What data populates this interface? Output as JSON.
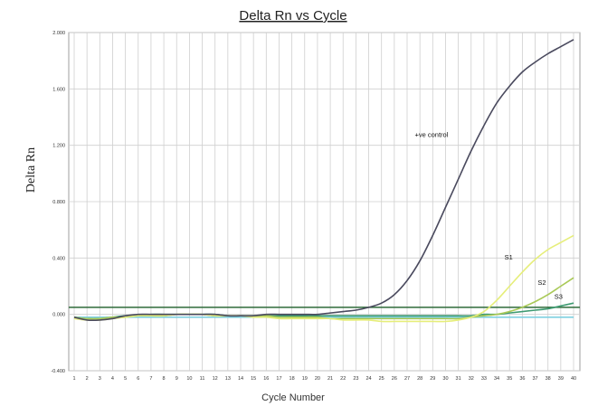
{
  "chart_data": {
    "type": "line",
    "title": "Delta Rn vs Cycle",
    "xlabel": "Cycle Number",
    "ylabel": "Delta Rn",
    "xlim": [
      1,
      40
    ],
    "ylim": [
      -0.4,
      2.0
    ],
    "ytick_labels": [
      "2.000",
      "1.600",
      "1.200",
      "0.800",
      "0.400",
      "0.000",
      "-0.400"
    ],
    "ytick_values": [
      2.0,
      1.6,
      1.2,
      0.8,
      0.4,
      0.0,
      -0.4
    ],
    "xtick_labels": [
      "1",
      "2",
      "3",
      "4",
      "5",
      "6",
      "7",
      "8",
      "9",
      "10",
      "11",
      "12",
      "13",
      "14",
      "15",
      "16",
      "17",
      "18",
      "19",
      "20",
      "21",
      "22",
      "23",
      "24",
      "25",
      "26",
      "27",
      "28",
      "29",
      "30",
      "31",
      "32",
      "33",
      "34",
      "35",
      "36",
      "37",
      "38",
      "39",
      "40"
    ],
    "grid": "vertical",
    "threshold": 0.05,
    "x": [
      1,
      2,
      3,
      4,
      5,
      6,
      7,
      8,
      9,
      10,
      11,
      12,
      13,
      14,
      15,
      16,
      17,
      18,
      19,
      20,
      21,
      22,
      23,
      24,
      25,
      26,
      27,
      28,
      29,
      30,
      31,
      32,
      33,
      34,
      35,
      36,
      37,
      38,
      39,
      40
    ],
    "series": [
      {
        "name": "+ve control",
        "color": "#4a4a5e",
        "values": [
          -0.02,
          -0.04,
          -0.04,
          -0.03,
          -0.01,
          0.0,
          0.0,
          0.0,
          0.0,
          0.0,
          0.0,
          0.0,
          -0.01,
          -0.01,
          -0.01,
          0.0,
          0.0,
          0.0,
          0.0,
          0.0,
          0.01,
          0.02,
          0.03,
          0.05,
          0.08,
          0.14,
          0.24,
          0.38,
          0.56,
          0.76,
          0.96,
          1.16,
          1.34,
          1.5,
          1.62,
          1.72,
          1.79,
          1.85,
          1.9,
          1.95
        ]
      },
      {
        "name": "S1",
        "color": "#e6ee7a",
        "values": [
          -0.03,
          -0.04,
          -0.04,
          -0.03,
          -0.02,
          -0.01,
          -0.01,
          -0.01,
          0.0,
          0.0,
          0.0,
          -0.01,
          -0.01,
          -0.01,
          -0.02,
          -0.02,
          -0.03,
          -0.03,
          -0.03,
          -0.03,
          -0.03,
          -0.04,
          -0.04,
          -0.04,
          -0.05,
          -0.05,
          -0.05,
          -0.05,
          -0.05,
          -0.05,
          -0.04,
          -0.02,
          0.02,
          0.1,
          0.2,
          0.3,
          0.39,
          0.46,
          0.51,
          0.56
        ]
      },
      {
        "name": "S2",
        "color": "#a9c957",
        "values": [
          -0.02,
          -0.03,
          -0.03,
          -0.02,
          -0.02,
          -0.01,
          -0.01,
          -0.01,
          0.0,
          0.0,
          0.0,
          -0.01,
          -0.01,
          -0.01,
          -0.01,
          -0.01,
          -0.02,
          -0.02,
          -0.02,
          -0.02,
          -0.03,
          -0.03,
          -0.03,
          -0.03,
          -0.03,
          -0.03,
          -0.03,
          -0.03,
          -0.03,
          -0.03,
          -0.03,
          -0.02,
          -0.01,
          0.0,
          0.02,
          0.05,
          0.09,
          0.14,
          0.2,
          0.26
        ]
      },
      {
        "name": "S3",
        "color": "#3f9b72",
        "values": [
          -0.02,
          -0.03,
          -0.03,
          -0.02,
          -0.01,
          -0.01,
          0.0,
          0.0,
          0.0,
          0.0,
          0.0,
          0.0,
          -0.01,
          -0.01,
          -0.01,
          -0.01,
          -0.01,
          -0.01,
          -0.01,
          -0.01,
          -0.01,
          -0.01,
          -0.01,
          -0.01,
          -0.01,
          -0.01,
          -0.01,
          -0.01,
          -0.01,
          -0.01,
          -0.01,
          -0.01,
          0.0,
          0.0,
          0.01,
          0.02,
          0.03,
          0.04,
          0.06,
          0.08
        ]
      },
      {
        "name": "",
        "color": "#7fd0e0",
        "values": [
          -0.02,
          -0.02,
          -0.02,
          -0.02,
          -0.02,
          -0.02,
          -0.02,
          -0.02,
          -0.02,
          -0.02,
          -0.02,
          -0.02,
          -0.02,
          -0.02,
          -0.02,
          -0.02,
          -0.02,
          -0.02,
          -0.02,
          -0.02,
          -0.02,
          -0.02,
          -0.02,
          -0.02,
          -0.02,
          -0.02,
          -0.02,
          -0.02,
          -0.02,
          -0.02,
          -0.02,
          -0.02,
          -0.02,
          -0.02,
          -0.02,
          -0.02,
          -0.02,
          -0.02,
          -0.02,
          -0.02
        ]
      }
    ],
    "threshold_color": "#2f6b3a"
  }
}
